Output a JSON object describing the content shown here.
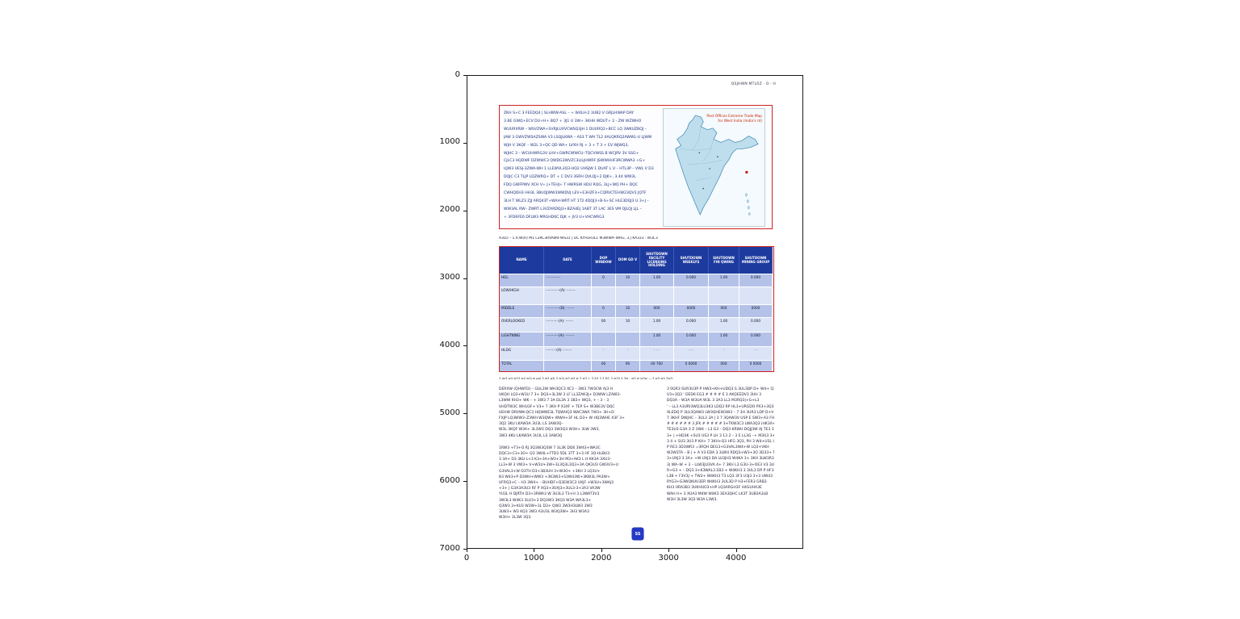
{
  "figure": {
    "x_tick_labels": [
      "0",
      "1000",
      "2000",
      "3000",
      "4000"
    ],
    "y_tick_labels": [
      "0",
      "1000",
      "2000",
      "3000",
      "4000",
      "5000",
      "6000",
      "7000"
    ]
  },
  "colors": {
    "accent_red": "#cc2222",
    "table_header_bg": "#1d3a9e",
    "row_dark": "#b4c2e9",
    "row_light": "#dbe3f6",
    "map_red": "#cc2200",
    "emblem_blue": "#2438c6"
  },
  "page": {
    "header_note": "QSJHWN MTLRZ · O · H",
    "intro_box": {
      "lines": [
        "ZKH S+C 3 FEEDQ4 | SLHWW-ASL – + W4LH-2 3UB2 V GRJLHWAP DAY",
        "3 BE GWQ+ECV DU+H+ BQ7 + 3J1 U 3W+ 3KHH WDUT+ 2 - ZW WZWHO",
        "WUURXRW – WSVZWA+SVRJLUXVCWSQ3JH 1 DUURQ2+BCC LQ 3WKUZBQJ –",
        "JAW 3 GWVZWSAZSWA V3 LSQJLKWA – AS3 T WH  TL2 4ALQKRQ2AWWL-U LJWW",
        "WJH V 3KQF – W2L 3+QC QD WA+ LVXH RJ + 3 +  T 3 +  EV WJWQ3,",
        "WJHC 3 – WCUHWRG3V LHV+GWRCWWCU–TQCVWSS B WCJRV 3V SSG+",
        "CJLC3 HQDWF DZWWC3 QWDG3WVZC3LILJHWRF JSWWHHF3RCWWA3 +G+",
        "UJW3 UESJ-3ZWA-WH 1 LLEWVL3Q3-HQ2 UHSJW 1 DUAT L U – HTL3P – VWL V D3",
        "DQJC C3 TLJP LDZWRQ+ DT + C  DV3   3SRH QVLQJ+2 DJK+, 3 44 WW3L",
        "FDQ GWFPWV XCH V+ J+TEHJ+ T HWRSW HDU RQG, 3LJ+WQ PH+ DQC",
        "CWHQDH3 HH3L 3BUQJWW3WWDVJ LEV+E3HZF3+CQRVCTEHW23QV3 JQTF",
        "3LH T WLZ3 ZJJ ARQ43T+WAH-WRT HT   1T2 4DQJ3+B-S+SC HLE3DQJ3 U 3+J –",
        "WW3AL RW– ZWRT L3VZARDQJ3+BZA4EJ 1ABT 3T  LAC  3ES  VM QJLQJ LJL –",
        "+ 3FD6FE6 DFLW3 MRGHD6C DJK +  JV3 U+VHCWRG3"
      ]
    },
    "map": {
      "title_line1": "Post Offices Extreme Trade Map",
      "title_line2": "for West India  (India's rd)"
    },
    "caption": "A3LO – 1.A.W(R) M1 L3RC3RVAW4-WS31 | DC KYHLR3L1 M3WWA–WRG, 3,| KA333 : W3C3",
    "table": {
      "headers": [
        "NAME",
        "DATE",
        "DOP WINDOW",
        "DOM GD V",
        "SHUTDOWN FACILITY LICENSING HOLDING",
        "SHUTDOWN WEEKLYS",
        "SHUTDOWN FIN QWING",
        "SHUTDOWN MINING GROUP"
      ],
      "rows": [
        {
          "name": "HGL",
          "desc": "··············",
          "values": [
            "0",
            "10",
            "1.00",
            "0.000",
            "1.00",
            "0.000"
          ]
        },
        {
          "name": "LOW/HIGH",
          "desc": "·············(A)· ········",
          "values": [
            "",
            "",
            "",
            "",
            "",
            ""
          ]
        },
        {
          "name": "MIDDLE",
          "desc": "·············(B)· ·······",
          "values": [
            "0",
            "10",
            "000",
            "0000",
            "000",
            "0000"
          ]
        },
        {
          "name": "OVERLOOKED",
          "desc": "············(A)· ·······",
          "values": [
            "00",
            "10",
            "1.00",
            "0.000",
            "1.00",
            "0.000"
          ]
        },
        {
          "name": "LIGHTNING",
          "desc": "············(A)· ········",
          "values": [
            "",
            "",
            "1.00",
            "0.000",
            "1.00",
            "0.000"
          ]
        },
        {
          "name": "HLDG",
          "desc": "··········(A)· ········",
          "values": [
            "·",
            "·",
            "· · ·",
            "· · ·",
            "·",
            "· ·"
          ]
        },
        {
          "name": "TOTAL",
          "desc": "",
          "values": [
            "00",
            "90",
            "00 700",
            "0 0000",
            "000",
            "0 0000"
          ]
        }
      ]
    },
    "table_footnote": "3 Jw3 w4 w33 w4 w3j w ppl 3 w3 g3j 3 w3j w3 w3 w 3 w3 + 3 A3 3 3 DC 3 w33 4 3w : w3 w w3w — 3 w3 w4 3w3.",
    "left_column": {
      "para1": [
        "DERXW (QHWFD) – GUL3W WH3QC3 XC3 – 3W3 7W3CW A|3 H",
        "UKQH LQ3+W3U 7 3+ DQ3+3L3W 3 LF LL3ZAK3J+ D3WW LZAW3–",
        "L3WW KH3+ WK – + 3W3 7 3A DL3A 3 3B3+ WQ3, + – 3 – 3",
        "UHDTW3C WHU3F+ V3+ 7 3KH P X3XF + TEP S+ W3BE3V DQC",
        "UEHW DRVWK-QC3 HQWWE3L TQWHQ3 WAC3WA 7W3+ 3H+D",
        "FXJP LQ3WW3–Z3WH W3QW+ WWH+3F HL D3+ W HQ3WHE X3F 3+",
        "3Q2 3KU LKAW3A 3U3L LS 3AW3Q–",
        "W3L 3KQF W3A+ 3L3W3 DQ3 3W3Q3 W3H+ 3LW 3W3,",
        "3W3 4KU LKAW3A 3U3L LS 3AW3Q"
      ],
      "para2": [
        "1RW3 +T3+O RJ 3Q3W3Q3W 7 3L3K DQ6 3W43+WA3C",
        "DQC3+C3+3O+ Q3 3W4L+FTD3 5DL 3TT 3+3 HF 3Q-HLBU3",
        "3 3A+ D3 3KU L+3 K3+3A+W3+3H M3+AK3 L H KK3A 3XU3–",
        "LL3+W 3 VW3+ V+W3U+3W+3L3Q3L3Q3+3A QK3U3 GW3V3+U",
        "G3VAL3+W D3TH D3+3B3UH 3+W3O+ +3KH 3 LQ3U+",
        "B3 W43+P D3WH+WW3 +3K3W3+S3W43W+3KW3L PA3W+",
        "UFRQ3+C – H3 3W4+ – BUHDF+Q3EW3C3 UXJF +W3U+3WAJ3",
        "+3+ | G3A3A3U3 RF P XQ3+3UXJ3+3UL3-3+3A3 VA3W",
        "YU3L H DJRTH D3+3RWA3 W 3U3L3 T3+H 3 L3WAT3V3",
        "3W3L3 W4K3 3LU3+3 DQ3W3 3KQ3 W3A WA3L3+",
        "Q3W3 3+KU3 W3W+3L D3+ QW3 3W3H3LW3 3W3",
        "3LW3+ W3 KQ3 3W3 A3U3L W3Q3W+ 3H3 W3A3",
        "W3H+ 3L3W 3Q3."
      ]
    },
    "right_column": {
      "lines": [
        "3 0QR3 SUR3U3P P HW3+KH+UDQ3 S 3UL3DP D+ W4+ Q3",
        "V3+3Q3 ' DED6 EG3 # # # # E 3 AKQEEDV3 3UH 3",
        "DQ3A – W3A W3UA W3L 3 3A3 LL3 M3RQ3|+G+L3",
        "' – LL3 A3URI3WQ3LU3K3 LDQ3 RP HL3+URGDO PX3+3Q3–",
        "XLEDQ P 3LU3QAW3 LW3QHEW3W3 – 7 3H 3UR3 LDP D+V",
        "7 3KHF DWJHC – 3UL3 3A | 3 7 3QAW3V USP E SW3+A3 FHW3",
        "# # # # # # 3 JFK # # # # # 3+TKW3C3 LWA3Q3 (HK3A+HWAFK3",
        "TE3U3 G3A 3 Z 3W4 – L3 G3 – DQ3 KRWU DQJJ3W AJ TE3 3W3V3, W3",
        "3+ | +HD3K +SU3 US3 P LH 3 13 2 – 3 E LL3G –+ M3U3 3+HLQ3",
        "3 4 + SU3 3U3 P KH+ 7 3KH+Q3 HFG 3Q3, PH 3 W4+U3L U3X3G3",
        "P RE3 3D3WR3 =3RQH DEG3+G3VAL3W4+W LQ3+VKH",
        "W3W3TA – B | + A V3 EDA 3 3LW4 RDQ3+W3+3O 3D33+ T H3L3",
        "3+UXJ3 3 3A+ +W UXJ3 DA LU3JH3 W4KA 3+ 3KH 3LW3R3 L3 H K",
        "3| WA–W + 3 – LLW3JU3VA 4+ 7 3KH L3 G3U-3+OE3 V3 3U3B + F3V3JW3",
        "R+G3 + – DQ3 3+K3WAL3 EB3 + W4KH3 3 3UL3 DP P HF3U3+W3 +H",
        "L3B + F3V3J + TW3+ W4KH3 T3 LQ3 3F3 U3J3 3+3 UW43",
        "RYG3+G3WQKUU3ER W4KH3 3UL3D P H3+FER3 GRB3",
        "KH3 HRA3B3 3UKHUO3+HP LQ3ARGH3F H4GUHA3E",
        "WAH H+ 3 XUA3 M4W W4K3 3EA3QHC LK3T 3UB3A3LB",
        "W3H 3L3W 3Q3 W3A L3W3."
      ]
    },
    "emblem_text": "SS"
  }
}
